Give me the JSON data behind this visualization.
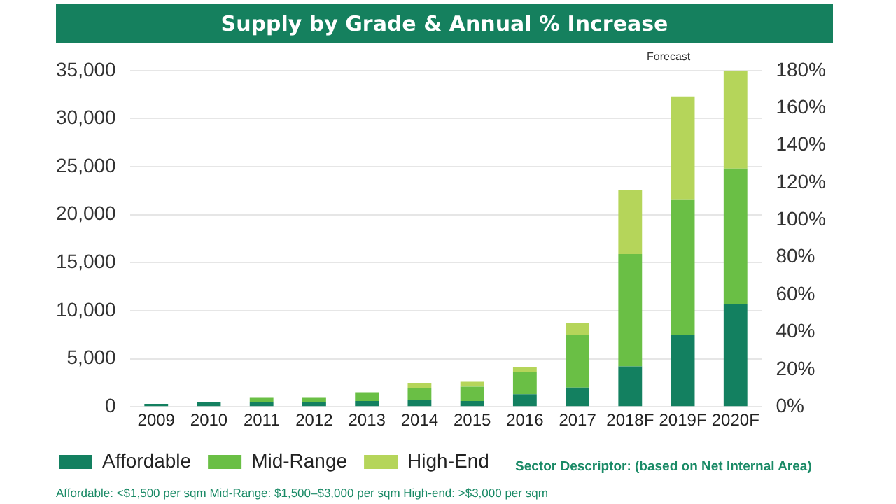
{
  "chart_data": {
    "type": "bar",
    "title": "Supply by Grade & Annual % Increase",
    "stacked": true,
    "categories": [
      "2009",
      "2010",
      "2011",
      "2012",
      "2013",
      "2014",
      "2015",
      "2016",
      "2017",
      "2018F",
      "2019F",
      "2020F"
    ],
    "series": [
      {
        "name": "Affordable",
        "color": "#138060",
        "values": [
          300,
          500,
          500,
          500,
          600,
          700,
          600,
          1300,
          2000,
          4200,
          7500,
          10700
        ]
      },
      {
        "name": "Mid-Range",
        "color": "#6abf45",
        "values": [
          0,
          0,
          500,
          500,
          900,
          1200,
          1500,
          2300,
          5500,
          11700,
          14100,
          14100
        ]
      },
      {
        "name": "High-End",
        "color": "#b5d55a",
        "values": [
          0,
          0,
          0,
          0,
          0,
          600,
          500,
          500,
          1200,
          6700,
          10700,
          10200
        ]
      }
    ],
    "ylim": [
      0,
      35000
    ],
    "yticks": [
      {
        "value": 0,
        "label": "0"
      },
      {
        "value": 5000,
        "label": "5,000"
      },
      {
        "value": 10000,
        "label": "10,000"
      },
      {
        "value": 15000,
        "label": "15,000"
      },
      {
        "value": 20000,
        "label": "20,000"
      },
      {
        "value": 25000,
        "label": "25,000"
      },
      {
        "value": 30000,
        "label": "30,000"
      },
      {
        "value": 35000,
        "label": "35,000"
      }
    ],
    "y2lim": [
      0,
      180
    ],
    "y2ticks": [
      {
        "value": 0,
        "label": "0%"
      },
      {
        "value": 20,
        "label": "20%"
      },
      {
        "value": 40,
        "label": "40%"
      },
      {
        "value": 60,
        "label": "60%"
      },
      {
        "value": 80,
        "label": "80%"
      },
      {
        "value": 100,
        "label": "100%"
      },
      {
        "value": 120,
        "label": "120%"
      },
      {
        "value": 140,
        "label": "140%"
      },
      {
        "value": 160,
        "label": "160%"
      },
      {
        "value": 180,
        "label": "180%"
      }
    ],
    "grid": "y",
    "legend": "bottom left",
    "annotations": [
      "Forecast",
      "Sector Descriptor: (based on Net Internal Area)",
      "Affordable: <$1,500 per sqm   Mid-Range: $1,500–$3,000 per sqm   High-end: >$3,000 per sqm"
    ]
  }
}
